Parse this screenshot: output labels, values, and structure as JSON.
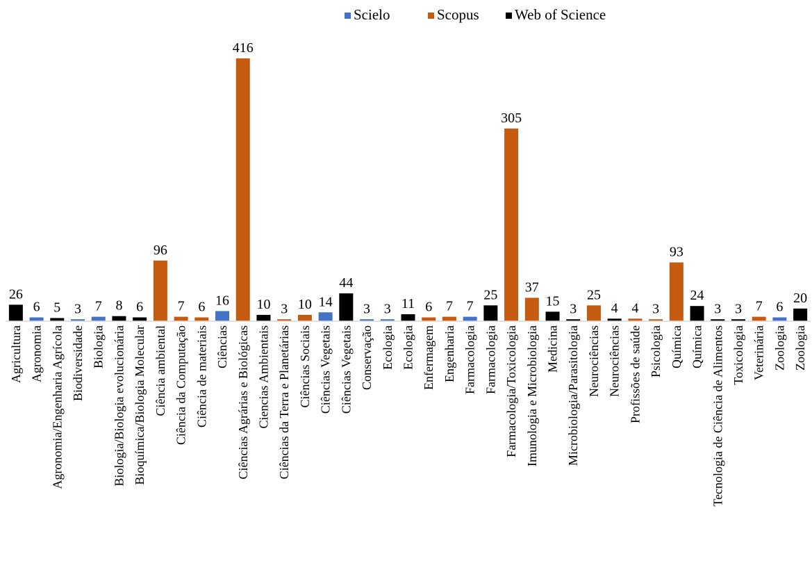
{
  "chart_data": {
    "type": "bar",
    "title": "",
    "xlabel": "",
    "ylabel": "",
    "ylim": [
      0,
      420
    ],
    "grid": false,
    "legend_position": "top",
    "legend": [
      {
        "name": "Scielo",
        "color": "#4472C4"
      },
      {
        "name": "Scopus",
        "color": "#C55A11"
      },
      {
        "name": "Web of Science",
        "color": "#000000"
      }
    ],
    "bars": [
      {
        "category": "Agricultura",
        "series": "Web of Science",
        "value": 26
      },
      {
        "category": "Agronomia",
        "series": "Scielo",
        "value": 6
      },
      {
        "category": "Agronomia/Engenharia Agrícola",
        "series": "Web of Science",
        "value": 5
      },
      {
        "category": "Biodiversidade",
        "series": "Scielo",
        "value": 3
      },
      {
        "category": "Biologia",
        "series": "Scielo",
        "value": 7
      },
      {
        "category": "Biologia/Biologia evolucionária",
        "series": "Web of Science",
        "value": 8
      },
      {
        "category": "Bioquímica/Biologia Molecular",
        "series": "Web of Science",
        "value": 6
      },
      {
        "category": "Ciência ambiental",
        "series": "Scopus",
        "value": 96
      },
      {
        "category": "Ciência da Computação",
        "series": "Scopus",
        "value": 7
      },
      {
        "category": "Ciência de materiais",
        "series": "Scopus",
        "value": 6
      },
      {
        "category": "Ciências",
        "series": "Scielo",
        "value": 16
      },
      {
        "category": "Ciências Agrárias e Biológicas",
        "series": "Scopus",
        "value": 416
      },
      {
        "category": "Ciencias Ambientais",
        "series": "Web of Science",
        "value": 10
      },
      {
        "category": "Ciências da Terra e Planetárias",
        "series": "Scopus",
        "value": 3
      },
      {
        "category": "Ciências Sociais",
        "series": "Scopus",
        "value": 10
      },
      {
        "category": "Ciências Vegetais",
        "series": "Scielo",
        "value": 14
      },
      {
        "category": "Ciências Vegetais",
        "series": "Web of Science",
        "value": 44
      },
      {
        "category": "Conservação",
        "series": "Scielo",
        "value": 3
      },
      {
        "category": "Ecologia",
        "series": "Scielo",
        "value": 3
      },
      {
        "category": "Ecologia",
        "series": "Web of Science",
        "value": 11
      },
      {
        "category": "Enfermagem",
        "series": "Scopus",
        "value": 6
      },
      {
        "category": "Engenharia",
        "series": "Scopus",
        "value": 7
      },
      {
        "category": "Farmacologia",
        "series": "Scielo",
        "value": 7
      },
      {
        "category": "Farmacologia",
        "series": "Web of Science",
        "value": 25
      },
      {
        "category": "Farmacologia/Toxicologia",
        "series": "Scopus",
        "value": 305
      },
      {
        "category": "Imunologia e Microbiologia",
        "series": "Scopus",
        "value": 37
      },
      {
        "category": "Medicina",
        "series": "Web of Science",
        "value": 15
      },
      {
        "category": "Microbiologia/Parasitologia",
        "series": "Web of Science",
        "value": 3
      },
      {
        "category": "Neurociências",
        "series": "Scopus",
        "value": 25
      },
      {
        "category": "Neurociências",
        "series": "Web of Science",
        "value": 4
      },
      {
        "category": "Profissões de saúde",
        "series": "Scopus",
        "value": 4
      },
      {
        "category": "Psicologia",
        "series": "Scopus",
        "value": 3
      },
      {
        "category": "Química",
        "series": "Scopus",
        "value": 93
      },
      {
        "category": "Química",
        "series": "Web of Science",
        "value": 24
      },
      {
        "category": "Tecnologia de Ciência de Alimentos",
        "series": "Web of Science",
        "value": 3
      },
      {
        "category": "Toxicologia",
        "series": "Web of Science",
        "value": 3
      },
      {
        "category": "Veterinária",
        "series": "Scopus",
        "value": 7
      },
      {
        "category": "Zoologia",
        "series": "Scielo",
        "value": 6
      },
      {
        "category": "Zoologia",
        "series": "Web of Science",
        "value": 20
      }
    ]
  }
}
